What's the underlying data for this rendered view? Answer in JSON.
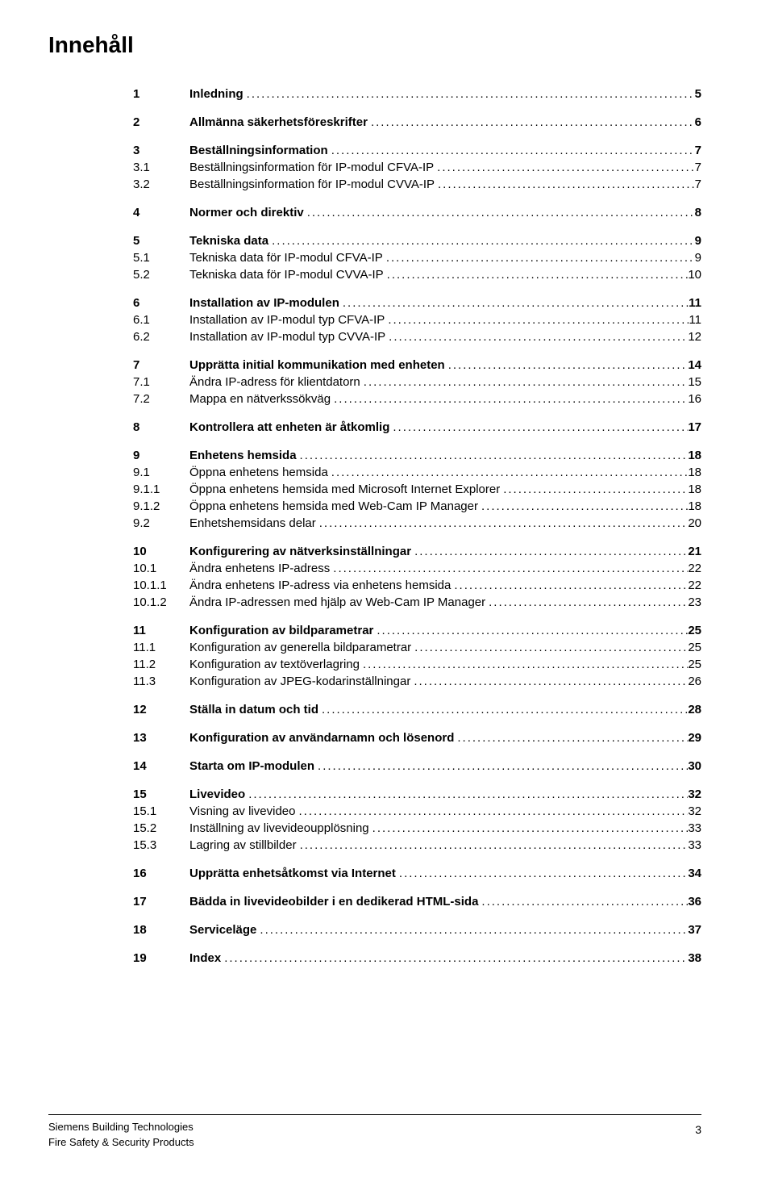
{
  "title": "Innehåll",
  "entries": [
    {
      "group_start": true,
      "bold": true,
      "num": "1",
      "label": "Inledning",
      "page": "5"
    },
    {
      "group_start": true,
      "bold": true,
      "num": "2",
      "label": "Allmänna säkerhetsföreskrifter",
      "page": "6"
    },
    {
      "group_start": true,
      "bold": true,
      "num": "3",
      "label": "Beställningsinformation",
      "page": "7"
    },
    {
      "num": "3.1",
      "label": "Beställningsinformation för IP-modul CFVA-IP",
      "page": "7"
    },
    {
      "num": "3.2",
      "label": "Beställningsinformation för IP-modul CVVA-IP",
      "page": "7"
    },
    {
      "group_start": true,
      "bold": true,
      "num": "4",
      "label": "Normer och direktiv",
      "page": "8"
    },
    {
      "group_start": true,
      "bold": true,
      "num": "5",
      "label": "Tekniska data",
      "page": "9"
    },
    {
      "num": "5.1",
      "label": "Tekniska data för IP-modul CFVA-IP",
      "page": "9"
    },
    {
      "num": "5.2",
      "label": "Tekniska data för IP-modul CVVA-IP",
      "page": "10"
    },
    {
      "group_start": true,
      "bold": true,
      "num": "6",
      "label": "Installation av IP-modulen",
      "page": "11"
    },
    {
      "num": "6.1",
      "label": "Installation av IP-modul typ CFVA-IP",
      "page": "11"
    },
    {
      "num": "6.2",
      "label": "Installation av IP-modul typ CVVA-IP",
      "page": "12"
    },
    {
      "group_start": true,
      "bold": true,
      "num": "7",
      "label": "Upprätta initial kommunikation med enheten",
      "page": "14"
    },
    {
      "num": "7.1",
      "label": "Ändra IP-adress för klientdatorn",
      "page": "15"
    },
    {
      "num": "7.2",
      "label": "Mappa en nätverkssökväg",
      "page": "16"
    },
    {
      "group_start": true,
      "bold": true,
      "num": "8",
      "label": "Kontrollera att enheten är åtkomlig",
      "page": "17"
    },
    {
      "group_start": true,
      "bold": true,
      "num": "9",
      "label": "Enhetens hemsida",
      "page": "18"
    },
    {
      "num": "9.1",
      "label": "Öppna enhetens hemsida",
      "page": "18"
    },
    {
      "num": "9.1.1",
      "label": "Öppna enhetens hemsida med Microsoft Internet Explorer",
      "page": "18"
    },
    {
      "num": "9.1.2",
      "label": "Öppna enhetens hemsida med Web-Cam IP Manager",
      "page": "18"
    },
    {
      "num": "9.2",
      "label": "Enhetshemsidans delar",
      "page": "20"
    },
    {
      "group_start": true,
      "bold": true,
      "num": "10",
      "label": "Konfigurering av nätverksinställningar",
      "page": "21"
    },
    {
      "num": "10.1",
      "label": "Ändra enhetens IP-adress",
      "page": "22"
    },
    {
      "num": "10.1.1",
      "label": "Ändra enhetens IP-adress via enhetens hemsida",
      "page": "22"
    },
    {
      "num": "10.1.2",
      "label": "Ändra IP-adressen med hjälp av Web-Cam IP Manager",
      "page": "23"
    },
    {
      "group_start": true,
      "bold": true,
      "num": "11",
      "label": "Konfiguration av bildparametrar",
      "page": "25"
    },
    {
      "num": "11.1",
      "label": "Konfiguration av generella bildparametrar",
      "page": "25"
    },
    {
      "num": "11.2",
      "label": "Konfiguration av textöverlagring",
      "page": "25"
    },
    {
      "num": "11.3",
      "label": "Konfiguration av JPEG-kodarinställningar",
      "page": "26"
    },
    {
      "group_start": true,
      "bold": true,
      "num": "12",
      "label": "Ställa in datum och tid",
      "page": "28"
    },
    {
      "group_start": true,
      "bold": true,
      "num": "13",
      "label": "Konfiguration av användarnamn och lösenord",
      "page": "29"
    },
    {
      "group_start": true,
      "bold": true,
      "num": "14",
      "label": "Starta om IP-modulen",
      "page": "30"
    },
    {
      "group_start": true,
      "bold": true,
      "num": "15",
      "label": "Livevideo",
      "page": "32"
    },
    {
      "num": "15.1",
      "label": "Visning av livevideo",
      "page": "32"
    },
    {
      "num": "15.2",
      "label": "Inställning av livevideoupplösning",
      "page": "33"
    },
    {
      "num": "15.3",
      "label": "Lagring av stillbilder",
      "page": "33"
    },
    {
      "group_start": true,
      "bold": true,
      "num": "16",
      "label": "Upprätta enhetsåtkomst via Internet",
      "page": "34"
    },
    {
      "group_start": true,
      "bold": true,
      "num": "17",
      "label": "Bädda in livevideobilder i en dedikerad HTML-sida",
      "page": "36"
    },
    {
      "group_start": true,
      "bold": true,
      "num": "18",
      "label": "Serviceläge",
      "page": "37"
    },
    {
      "group_start": true,
      "bold": true,
      "num": "19",
      "label": "Index",
      "page": "38"
    }
  ],
  "footer": {
    "line1": "Siemens Building Technologies",
    "line2": "Fire Safety & Security Products",
    "page_number": "3"
  }
}
